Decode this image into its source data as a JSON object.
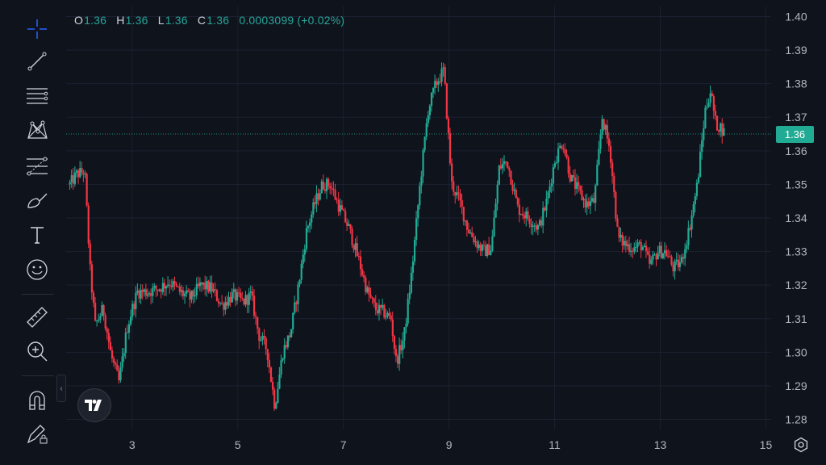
{
  "legend": {
    "o_label": "O",
    "o_value": "1.36",
    "h_label": "H",
    "h_value": "1.36",
    "l_label": "L",
    "l_value": "1.36",
    "c_label": "C",
    "c_value": "1.36",
    "change": "0.0003099 (+0.02%)"
  },
  "current_price_label": "1.36",
  "toolbar": {
    "tools": [
      "crosshair-icon",
      "trend-line-icon",
      "horizontal-lines-icon",
      "pattern-icon",
      "fib-icon",
      "brush-icon",
      "text-icon",
      "emoji-icon",
      "ruler-icon",
      "zoom-icon",
      "magnet-icon",
      "lock-drawing-icon"
    ]
  },
  "colors": {
    "up": "#22ab94",
    "down": "#f23645",
    "grid": "#1c2030",
    "axis_text": "#b2b5be",
    "background": "#0f131c"
  },
  "chart_data": {
    "type": "candlestick",
    "title": "",
    "xlabel": "",
    "ylabel": "",
    "x_ticks": [
      "3",
      "5",
      "7",
      "9",
      "11",
      "13",
      "15"
    ],
    "y_ticks": [
      "1.40",
      "1.39",
      "1.38",
      "1.37",
      "1.36",
      "1.35",
      "1.34",
      "1.33",
      "1.32",
      "1.31",
      "1.30",
      "1.29",
      "1.28"
    ],
    "ylim": [
      1.277,
      1.403
    ],
    "xlim": [
      1.75,
      15.1
    ],
    "current_price": 1.365,
    "grid": true,
    "path_x": [
      1.82,
      1.95,
      2.1,
      2.2,
      2.3,
      2.45,
      2.6,
      2.75,
      2.9,
      3.0,
      3.1,
      3.3,
      3.5,
      3.7,
      3.9,
      4.1,
      4.3,
      4.5,
      4.7,
      4.9,
      5.1,
      5.25,
      5.4,
      5.55,
      5.7,
      5.85,
      6.0,
      6.15,
      6.3,
      6.45,
      6.6,
      6.75,
      6.9,
      7.1,
      7.3,
      7.45,
      7.6,
      7.75,
      7.9,
      8.0,
      8.15,
      8.3,
      8.45,
      8.6,
      8.75,
      8.9,
      9.05,
      9.2,
      9.35,
      9.5,
      9.65,
      9.8,
      9.95,
      10.1,
      10.3,
      10.5,
      10.7,
      10.85,
      11.0,
      11.15,
      11.3,
      11.45,
      11.6,
      11.75,
      11.9,
      12.05,
      12.2,
      12.35,
      12.5,
      12.65,
      12.8,
      12.95,
      13.1,
      13.25,
      13.4,
      13.55,
      13.7,
      13.85,
      13.95,
      14.05,
      14.15,
      14.22
    ],
    "path_y": [
      1.35,
      1.353,
      1.354,
      1.325,
      1.308,
      1.313,
      1.299,
      1.291,
      1.307,
      1.313,
      1.318,
      1.318,
      1.319,
      1.321,
      1.318,
      1.316,
      1.32,
      1.319,
      1.314,
      1.317,
      1.315,
      1.317,
      1.305,
      1.301,
      1.284,
      1.3,
      1.306,
      1.32,
      1.336,
      1.344,
      1.35,
      1.35,
      1.344,
      1.337,
      1.327,
      1.318,
      1.313,
      1.312,
      1.31,
      1.297,
      1.305,
      1.325,
      1.35,
      1.372,
      1.38,
      1.384,
      1.35,
      1.345,
      1.337,
      1.333,
      1.33,
      1.331,
      1.355,
      1.357,
      1.343,
      1.34,
      1.337,
      1.345,
      1.357,
      1.363,
      1.352,
      1.348,
      1.344,
      1.345,
      1.37,
      1.36,
      1.334,
      1.332,
      1.331,
      1.332,
      1.326,
      1.33,
      1.33,
      1.325,
      1.327,
      1.337,
      1.35,
      1.372,
      1.378,
      1.368,
      1.367,
      1.365
    ]
  }
}
